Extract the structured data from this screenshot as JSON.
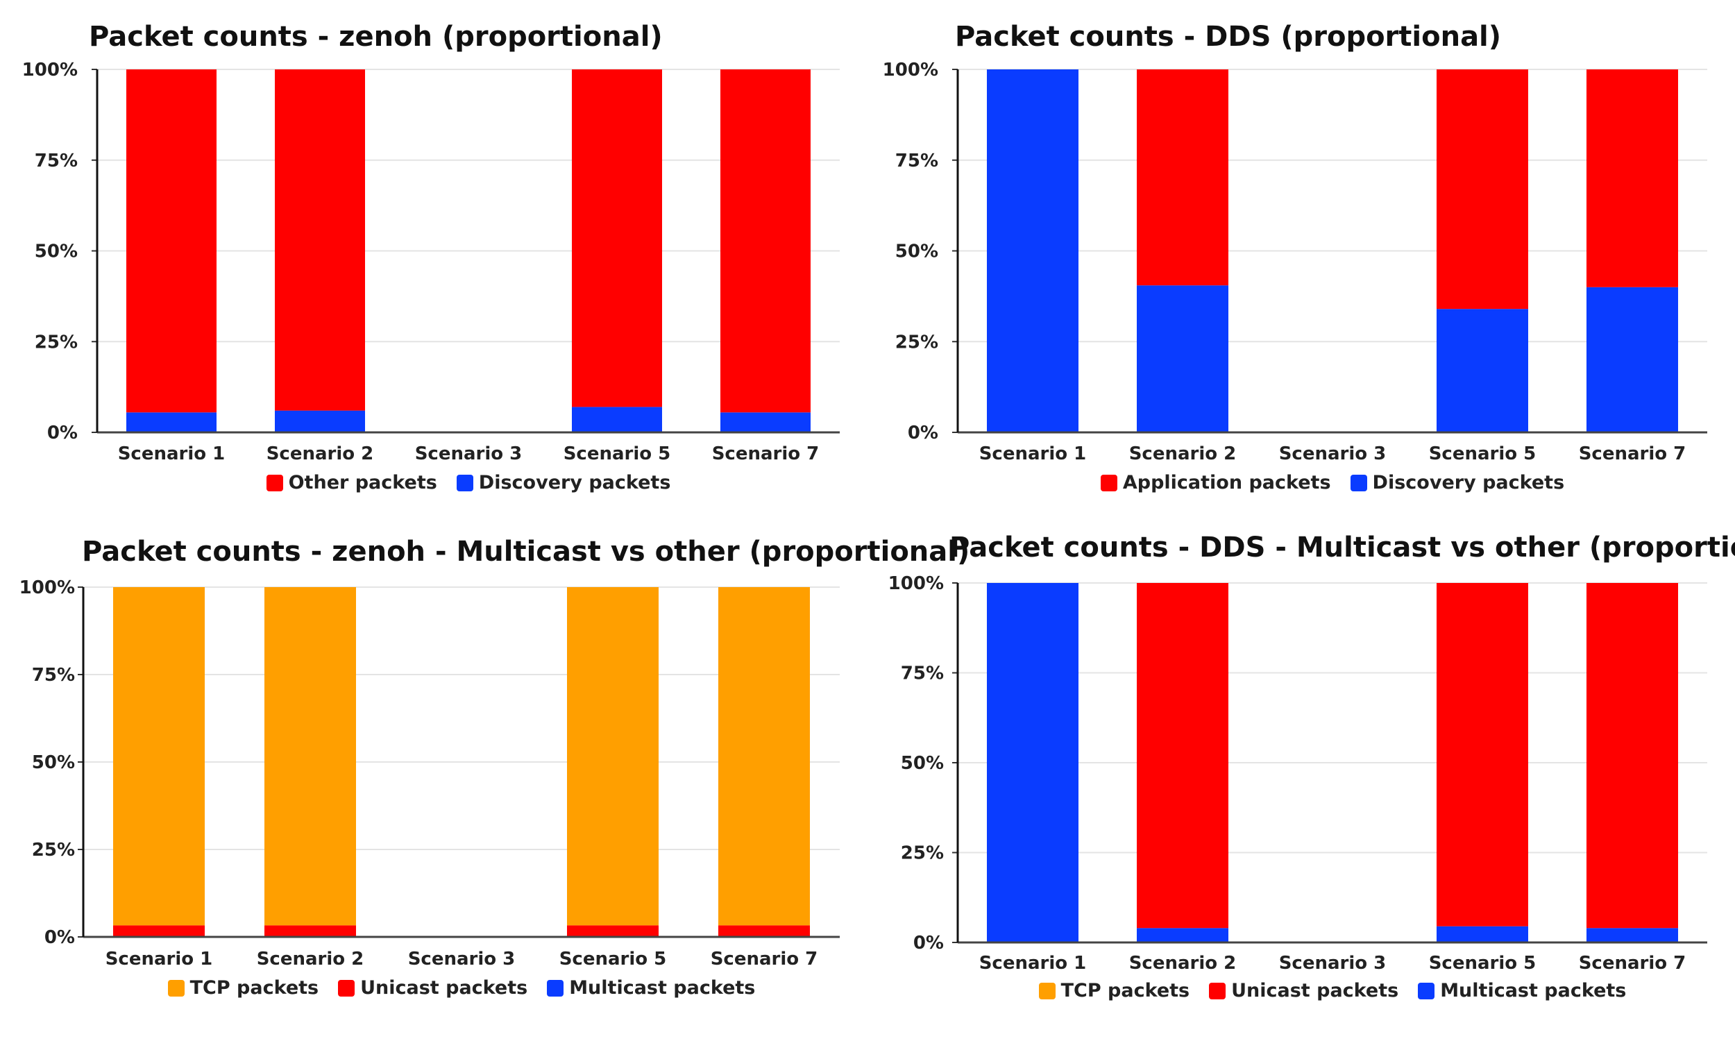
{
  "chart_data": [
    {
      "type": "bar",
      "stacked": true,
      "title": "Packet counts - zenoh (proportional)",
      "categories": [
        "Scenario 1",
        "Scenario 2",
        "Scenario 3",
        "Scenario 5",
        "Scenario 7"
      ],
      "series": [
        {
          "name": "Discovery packets",
          "color": "#0a3cff",
          "values": [
            5.5,
            6,
            null,
            7,
            5.5
          ]
        },
        {
          "name": "Other packets",
          "color": "#ff0000",
          "values": [
            94.5,
            94,
            null,
            93,
            94.5
          ]
        }
      ],
      "legend_order": [
        "Other packets",
        "Discovery packets"
      ],
      "ylim": [
        0,
        100
      ],
      "yticks": [
        "0%",
        "25%",
        "50%",
        "75%",
        "100%"
      ],
      "xlabel": "",
      "ylabel": "",
      "grid": true,
      "legend": "bottom"
    },
    {
      "type": "bar",
      "stacked": true,
      "title": "Packet counts - DDS (proportional)",
      "categories": [
        "Scenario 1",
        "Scenario 2",
        "Scenario 3",
        "Scenario 5",
        "Scenario 7"
      ],
      "series": [
        {
          "name": "Discovery packets",
          "color": "#0a3cff",
          "values": [
            100,
            40.5,
            null,
            34,
            40
          ]
        },
        {
          "name": "Application packets",
          "color": "#ff0000",
          "values": [
            0,
            59.5,
            null,
            66,
            60
          ]
        }
      ],
      "legend_order": [
        "Application packets",
        "Discovery packets"
      ],
      "ylim": [
        0,
        100
      ],
      "yticks": [
        "0%",
        "25%",
        "50%",
        "75%",
        "100%"
      ],
      "xlabel": "",
      "ylabel": "",
      "grid": true,
      "legend": "bottom"
    },
    {
      "type": "bar",
      "stacked": true,
      "title": "Packet counts - zenoh - Multicast vs other (proportional)",
      "categories": [
        "Scenario 1",
        "Scenario 2",
        "Scenario 3",
        "Scenario 5",
        "Scenario 7"
      ],
      "series": [
        {
          "name": "Multicast packets",
          "color": "#0a3cff",
          "values": [
            0.3,
            0.3,
            null,
            0.3,
            0.3
          ]
        },
        {
          "name": "Unicast packets",
          "color": "#ff0000",
          "values": [
            3,
            3,
            null,
            3,
            3
          ]
        },
        {
          "name": "TCP packets",
          "color": "#ff9f00",
          "values": [
            96.7,
            96.7,
            null,
            96.7,
            96.7
          ]
        }
      ],
      "legend_order": [
        "TCP packets",
        "Unicast packets",
        "Multicast packets"
      ],
      "ylim": [
        0,
        100
      ],
      "yticks": [
        "0%",
        "25%",
        "50%",
        "75%",
        "100%"
      ],
      "xlabel": "",
      "ylabel": "",
      "grid": true,
      "legend": "bottom"
    },
    {
      "type": "bar",
      "stacked": true,
      "title": "Packet counts - DDS - Multicast vs other (proportional)",
      "categories": [
        "Scenario 1",
        "Scenario 2",
        "Scenario 3",
        "Scenario 5",
        "Scenario 7"
      ],
      "series": [
        {
          "name": "Multicast packets",
          "color": "#0a3cff",
          "values": [
            100,
            4,
            null,
            4.5,
            4
          ]
        },
        {
          "name": "Unicast packets",
          "color": "#ff0000",
          "values": [
            0,
            96,
            null,
            95.5,
            96
          ]
        },
        {
          "name": "TCP packets",
          "color": "#ff9f00",
          "values": [
            0,
            0,
            null,
            0,
            0
          ]
        }
      ],
      "legend_order": [
        "TCP packets",
        "Unicast packets",
        "Multicast packets"
      ],
      "ylim": [
        0,
        100
      ],
      "yticks": [
        "0%",
        "25%",
        "50%",
        "75%",
        "100%"
      ],
      "xlabel": "",
      "ylabel": "",
      "grid": true,
      "legend": "bottom"
    }
  ]
}
